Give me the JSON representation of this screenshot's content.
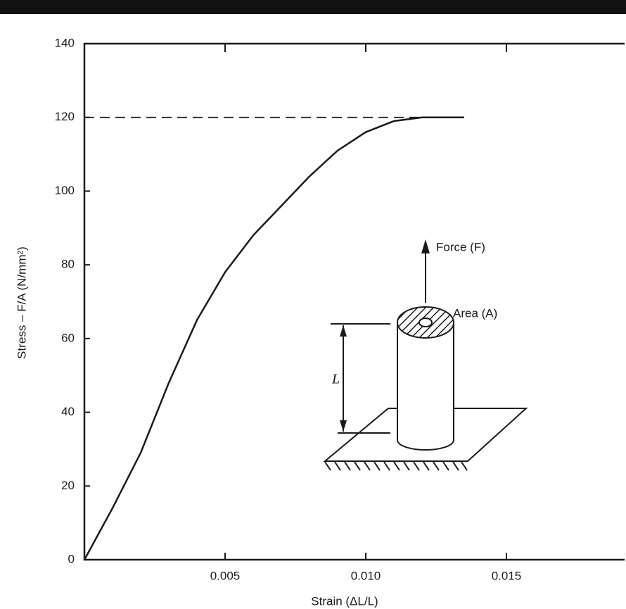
{
  "chart_data": {
    "type": "line",
    "x_label": "Strain (ΔL/L)",
    "y_label": "Stress – F/A (N/mm²)",
    "x": [
      0,
      0.001,
      0.002,
      0.003,
      0.004,
      0.005,
      0.006,
      0.007,
      0.008,
      0.009,
      0.01,
      0.011,
      0.012,
      0.0135
    ],
    "series": [
      {
        "color": "#1a1a1a",
        "values": [
          0,
          14,
          29,
          48,
          65,
          78,
          88,
          96,
          104,
          111,
          116,
          119,
          120,
          120
        ]
      }
    ],
    "reference_line": {
      "y": 120,
      "x_end": 0.0135
    },
    "xlim": [
      0,
      0.0192
    ],
    "ylim": [
      0,
      140
    ],
    "xticks": [
      0.005,
      {
        "value": 0.01,
        "label": "0.010"
      },
      0.015
    ],
    "yticks": [
      0,
      20,
      40,
      60,
      80,
      100,
      120,
      140
    ],
    "annotations": [
      "Force (F)",
      "Area (A)",
      "L"
    ]
  }
}
